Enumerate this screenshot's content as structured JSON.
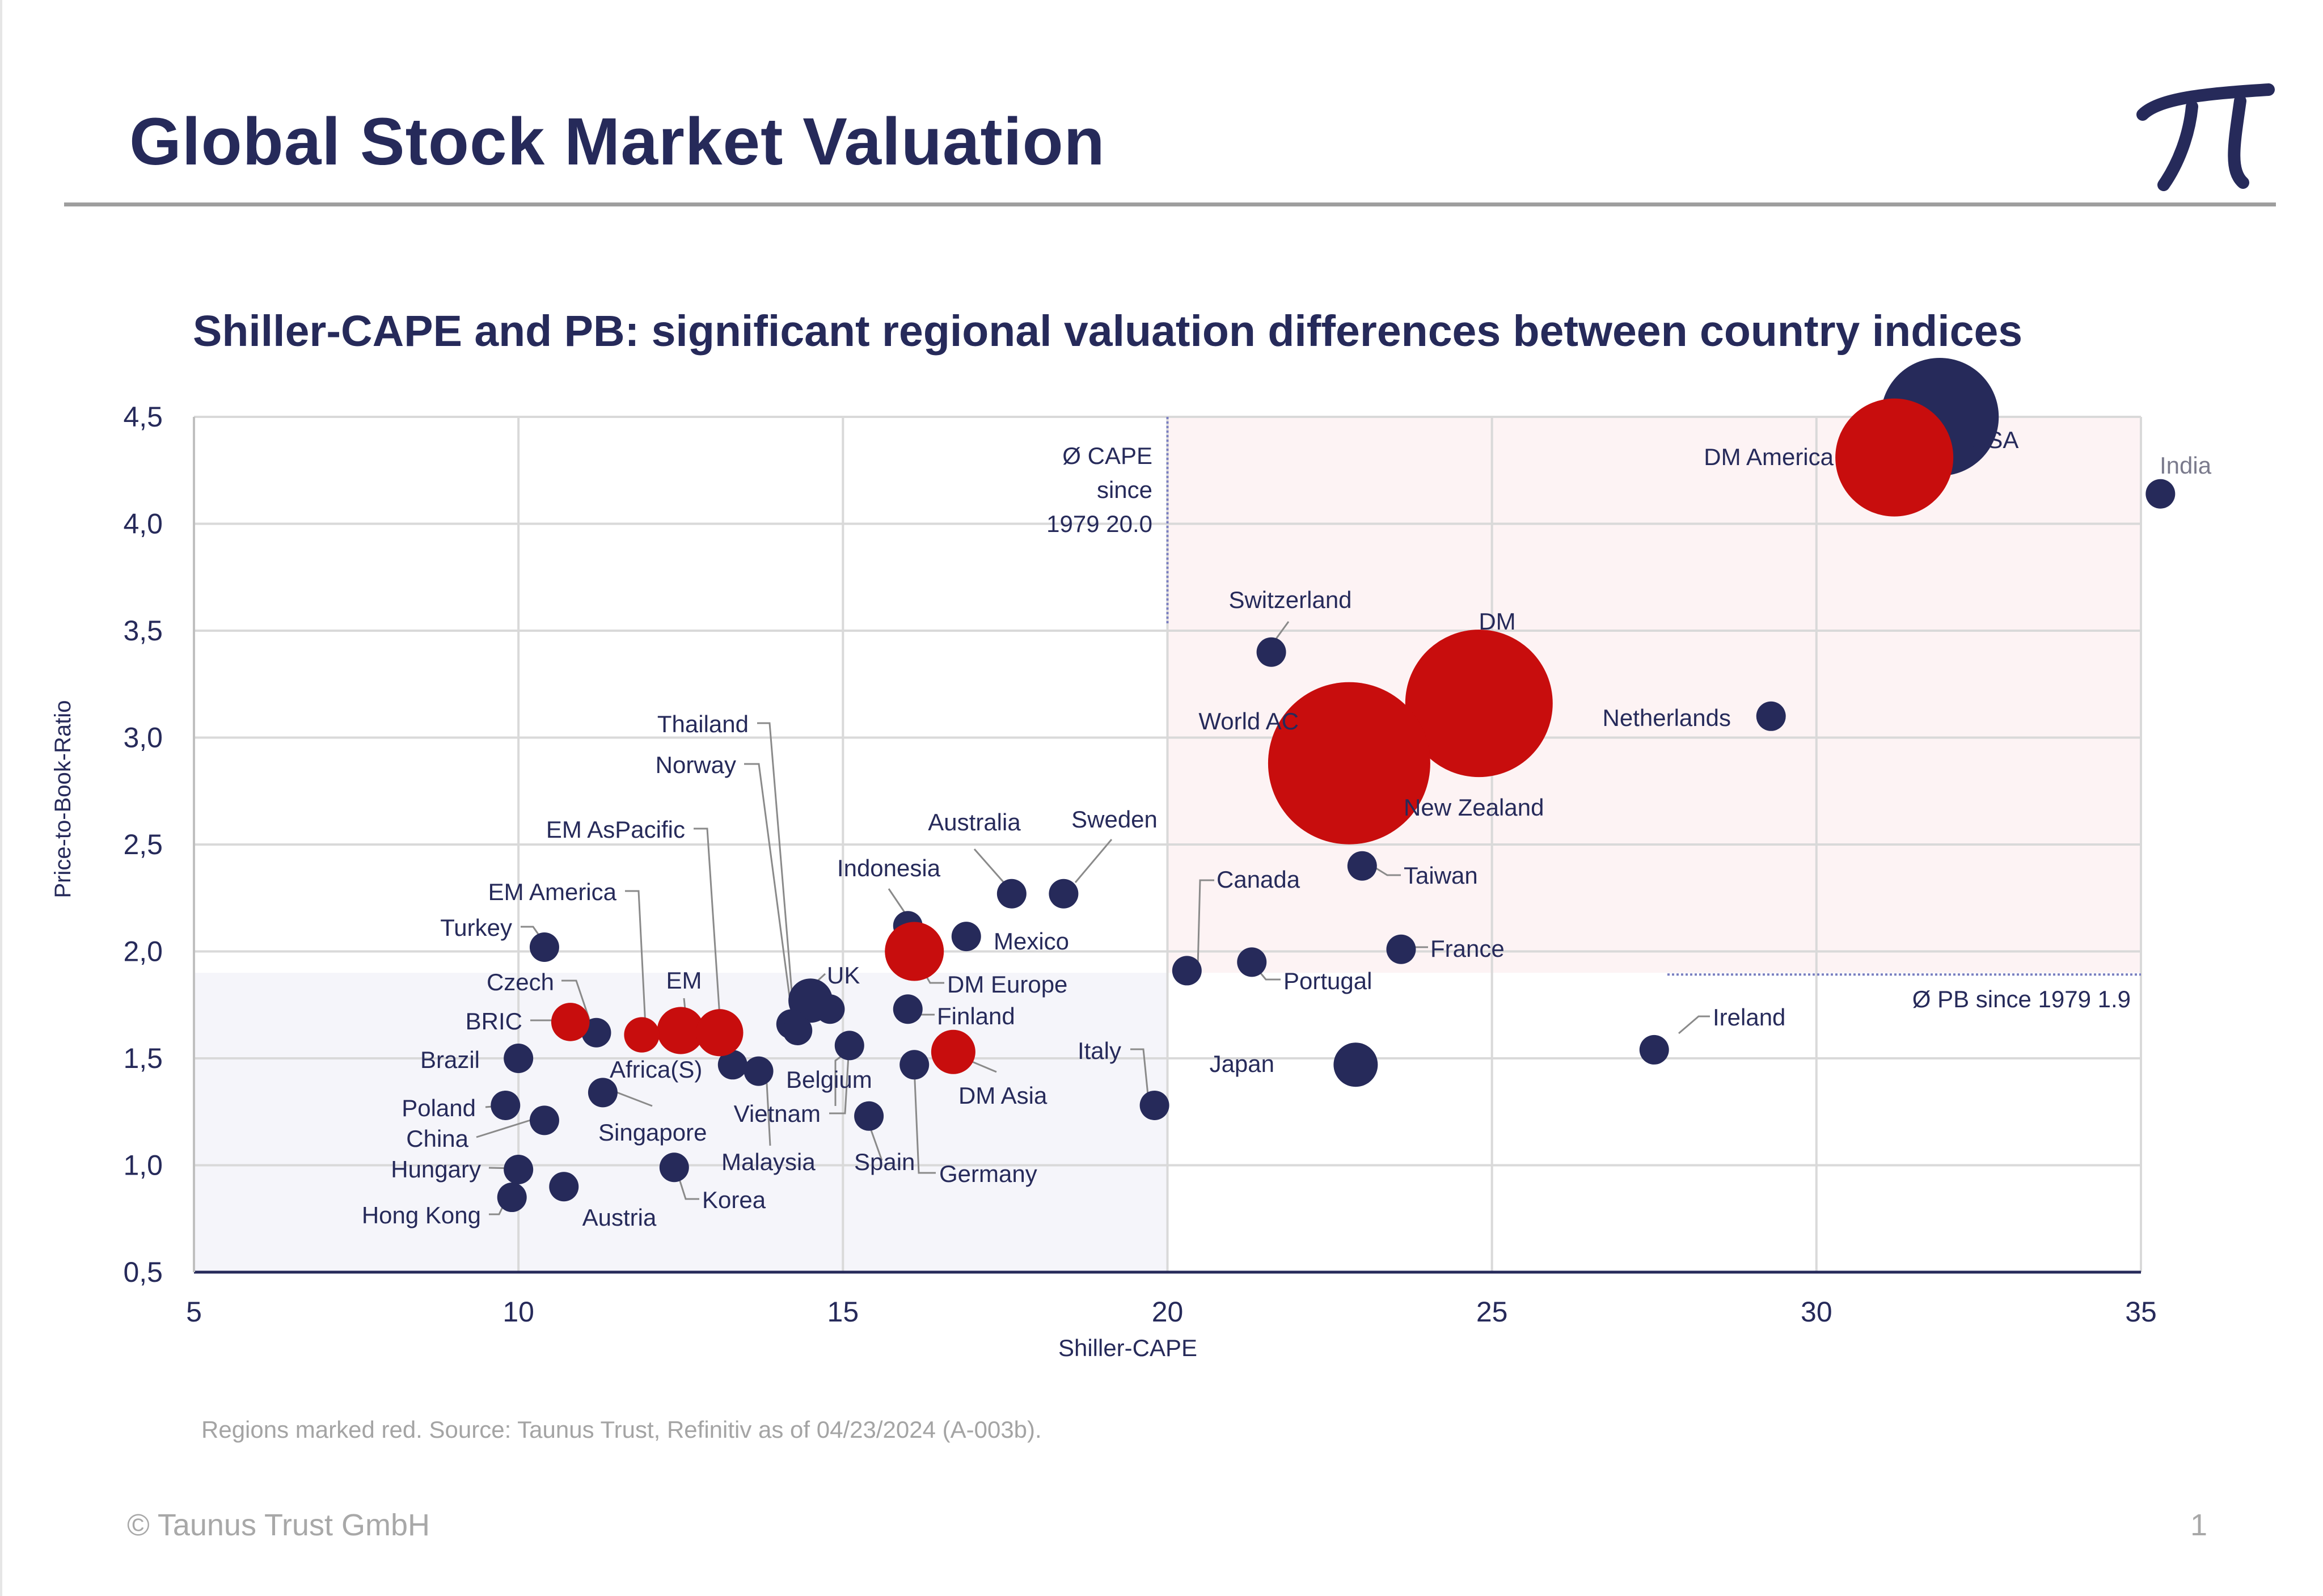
{
  "page": {
    "title": "Global Stock Market Valuation",
    "source_note": "Regions marked red. Source: Taunus Trust, Refinitiv as of 04/23/2024 (A-003b).",
    "copyright": "© Taunus Trust GmbH",
    "page_number": "1",
    "logo_icon": "pi-logo-icon"
  },
  "colors": {
    "country": "#262a5a",
    "region": "#c80d0d",
    "grid": "#d9d9d9",
    "high_zone": "#fdf3f4",
    "low_zone": "#f5f5fa",
    "reference_line": "#7a7fc0"
  },
  "chart_data": {
    "type": "scatter",
    "title": "Shiller-CAPE and PB: significant regional valuation differences between country indices",
    "xlabel": "Shiller-CAPE",
    "ylabel": "Price-to-Book-Ratio",
    "xlim": [
      5,
      35
    ],
    "ylim": [
      0.5,
      4.5
    ],
    "xticks": [
      "5",
      "10",
      "15",
      "20",
      "25",
      "30",
      "35"
    ],
    "yticks": [
      "0,5",
      "1,0",
      "1,5",
      "2,0",
      "2,5",
      "3,0",
      "3,5",
      "4,0",
      "4,5"
    ],
    "grid": true,
    "reference_lines": [
      {
        "axis": "x",
        "value": 20.0,
        "label": [
          "Ø CAPE",
          "since",
          "1979 20.0"
        ]
      },
      {
        "axis": "y",
        "value": 1.9,
        "label": [
          "Ø PB since 1979 1.9"
        ]
      }
    ],
    "series": [
      {
        "name": "Countries",
        "color": "#262a5a",
        "points": [
          {
            "label": "India",
            "x": 35.3,
            "y": 4.14,
            "size": 1
          },
          {
            "label": "USA",
            "x": 31.9,
            "y": 4.5,
            "size": 4
          },
          {
            "label": "Netherlands",
            "x": 29.3,
            "y": 3.1,
            "size": 1
          },
          {
            "label": "Switzerland",
            "x": 21.6,
            "y": 3.4,
            "size": 1
          },
          {
            "label": "New Zealand",
            "x": 23.2,
            "y": 2.73,
            "size": 1
          },
          {
            "label": "Taiwan",
            "x": 23.0,
            "y": 2.4,
            "size": 1
          },
          {
            "label": "France",
            "x": 23.6,
            "y": 2.01,
            "size": 1
          },
          {
            "label": "Canada",
            "x": 20.3,
            "y": 1.91,
            "size": 1
          },
          {
            "label": "Portugal",
            "x": 21.3,
            "y": 1.95,
            "size": 1
          },
          {
            "label": "Ireland",
            "x": 27.5,
            "y": 1.54,
            "size": 1
          },
          {
            "label": "Japan",
            "x": 22.9,
            "y": 1.47,
            "size": 1.5
          },
          {
            "label": "Italy",
            "x": 19.8,
            "y": 1.28,
            "size": 1
          },
          {
            "label": "Australia",
            "x": 17.6,
            "y": 2.27,
            "size": 1
          },
          {
            "label": "Sweden",
            "x": 18.4,
            "y": 2.27,
            "size": 1
          },
          {
            "label": "Mexico",
            "x": 16.9,
            "y": 2.07,
            "size": 1
          },
          {
            "label": "Indonesia",
            "x": 16.0,
            "y": 2.12,
            "size": 1
          },
          {
            "label": "Finland",
            "x": 16.0,
            "y": 1.73,
            "size": 1
          },
          {
            "label": "Germany",
            "x": 16.1,
            "y": 1.47,
            "size": 1
          },
          {
            "label": "Spain",
            "x": 15.4,
            "y": 1.23,
            "size": 1
          },
          {
            "label": "UK",
            "x": 14.5,
            "y": 1.77,
            "size": 1.5
          },
          {
            "label": "Belgium",
            "x": 15.1,
            "y": 1.56,
            "size": 1
          },
          {
            "label": "Thailand",
            "x": 14.8,
            "y": 1.73,
            "size": 1
          },
          {
            "label": "Norway",
            "x": 14.2,
            "y": 1.66,
            "size": 1
          },
          {
            "label": "Vietnam",
            "x": 13.7,
            "y": 1.44,
            "size": 1
          },
          {
            "label": "Malaysia",
            "x": 13.3,
            "y": 1.47,
            "size": 1
          },
          {
            "label": "Korea",
            "x": 12.4,
            "y": 0.99,
            "size": 1
          },
          {
            "label": "Singapore",
            "x": 11.3,
            "y": 1.34,
            "size": 1
          },
          {
            "label": "Turkey",
            "x": 10.4,
            "y": 2.02,
            "size": 1
          },
          {
            "label": "Czech",
            "x": 11.2,
            "y": 1.62,
            "size": 1
          },
          {
            "label": "Brazil",
            "x": 10.0,
            "y": 1.5,
            "size": 1
          },
          {
            "label": "Poland",
            "x": 9.8,
            "y": 1.28,
            "size": 1
          },
          {
            "label": "China",
            "x": 10.4,
            "y": 1.21,
            "size": 1
          },
          {
            "label": "Hungary",
            "x": 10.0,
            "y": 0.98,
            "size": 1
          },
          {
            "label": "Hong Kong",
            "x": 9.9,
            "y": 0.85,
            "size": 1
          },
          {
            "label": "Austria",
            "x": 10.7,
            "y": 0.9,
            "size": 1
          },
          {
            "label": "",
            "x": 14.3,
            "y": 1.63,
            "size": 1
          }
        ]
      },
      {
        "name": "Regions",
        "color": "#c80d0d",
        "points": [
          {
            "label": "DM America",
            "x": 31.2,
            "y": 4.31,
            "size": 4
          },
          {
            "label": "DM",
            "x": 24.8,
            "y": 3.16,
            "size": 5
          },
          {
            "label": "World AC",
            "x": 22.8,
            "y": 2.88,
            "size": 5.5
          },
          {
            "label": "DM Europe",
            "x": 16.1,
            "y": 2.0,
            "size": 2
          },
          {
            "label": "DM Asia",
            "x": 16.7,
            "y": 1.53,
            "size": 1.5
          },
          {
            "label": "EM",
            "x": 12.5,
            "y": 1.63,
            "size": 1.6
          },
          {
            "label": "EM America",
            "x": 11.9,
            "y": 1.61,
            "size": 1.2
          },
          {
            "label": "EM AsPacific",
            "x": 13.1,
            "y": 1.62,
            "size": 1.6
          },
          {
            "label": "BRIC",
            "x": 10.8,
            "y": 1.67,
            "size": 1.3
          },
          {
            "label": "Africa(S)",
            "x": 11.9,
            "y": 1.61,
            "size": 0
          }
        ]
      }
    ]
  }
}
